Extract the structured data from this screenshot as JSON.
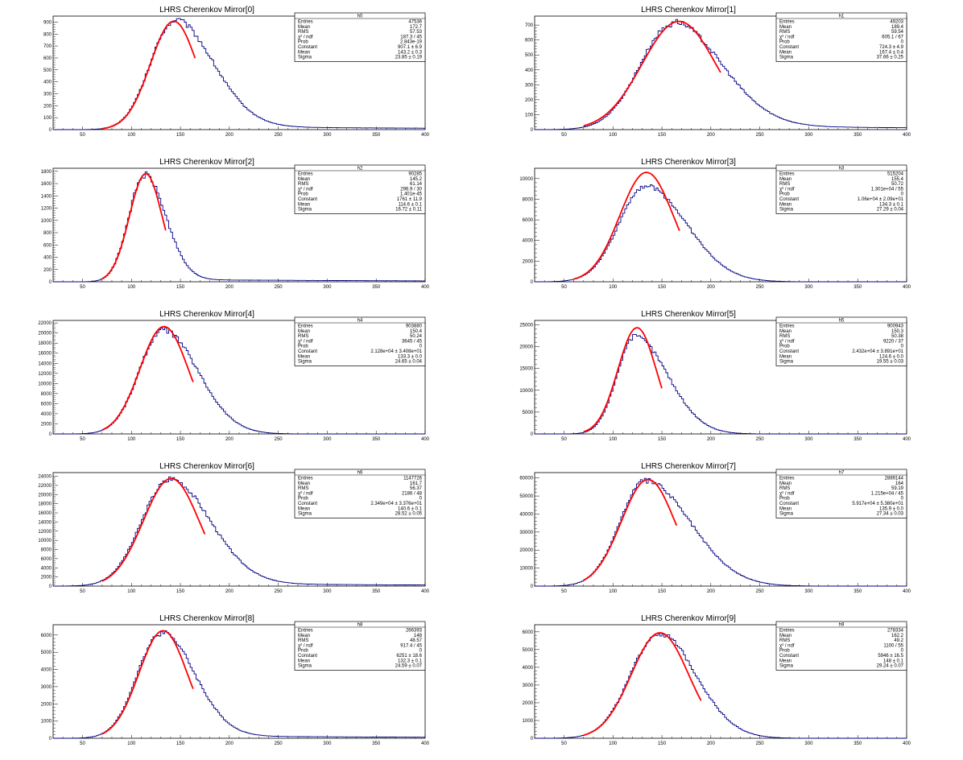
{
  "chart_data": [
    {
      "type": "histogram",
      "title": "LHRS Cherenkov Mirror[0]",
      "xlim": [
        20,
        400
      ],
      "ylim": [
        0,
        950
      ],
      "xticks": [
        50,
        100,
        150,
        200,
        250,
        300,
        350,
        400
      ],
      "yticks": [
        0,
        100,
        200,
        300,
        400,
        500,
        600,
        700,
        800,
        900
      ],
      "tail": 28,
      "stats": {
        "name": "h0",
        "rows": [
          [
            "Entries",
            "47536"
          ],
          [
            "Mean",
            "172.7"
          ],
          [
            "RMS",
            "57.53"
          ],
          [
            "χ² / ndf",
            "187.3 / 45"
          ],
          [
            "Prob",
            "2.843e-19"
          ],
          [
            "Constant",
            "907.1 ± 6.9"
          ],
          [
            "Mean",
            "143.2 ± 0.3"
          ],
          [
            "Sigma",
            "23.85 ± 0.19"
          ]
        ]
      },
      "hist": {
        "peak": 900,
        "mu": 143,
        "sl": 24,
        "sr": 40
      },
      "fit": {
        "const": 907.1,
        "mean": 143.2,
        "sigma": 23.85,
        "range": [
          70,
          165
        ]
      }
    },
    {
      "type": "histogram",
      "title": "LHRS Cherenkov Mirror[1]",
      "xlim": [
        20,
        400
      ],
      "ylim": [
        0,
        760
      ],
      "xticks": [
        50,
        100,
        150,
        200,
        250,
        300,
        350,
        400
      ],
      "yticks": [
        0,
        100,
        200,
        300,
        400,
        500,
        600,
        700
      ],
      "tail": 28,
      "stats": {
        "name": "h1",
        "rows": [
          [
            "Entries",
            "49203"
          ],
          [
            "Mean",
            "189.4"
          ],
          [
            "RMS",
            "59.54"
          ],
          [
            "χ² / ndf",
            "605.1 / 67"
          ],
          [
            "Prob",
            "0"
          ],
          [
            "Constant",
            "724.3 ± 4.9"
          ],
          [
            "Mean",
            "167.4 ± 0.4"
          ],
          [
            "Sigma",
            "37.66 ± 0.25"
          ]
        ]
      },
      "hist": {
        "peak": 700,
        "mu": 160,
        "sl": 33,
        "sr": 50
      },
      "fit": {
        "const": 724.3,
        "mean": 167.4,
        "sigma": 37.66,
        "range": [
          70,
          210
        ]
      }
    },
    {
      "type": "histogram",
      "title": "LHRS Cherenkov Mirror[2]",
      "xlim": [
        20,
        400
      ],
      "ylim": [
        0,
        1850
      ],
      "xticks": [
        50,
        100,
        150,
        200,
        250,
        300,
        350,
        400
      ],
      "yticks": [
        0,
        200,
        400,
        600,
        800,
        1000,
        1200,
        1400,
        1600,
        1800
      ],
      "tail": 38,
      "stats": {
        "name": "h2",
        "rows": [
          [
            "Entries",
            "90285"
          ],
          [
            "Mean",
            "145.2"
          ],
          [
            "RMS",
            "61.14"
          ],
          [
            "χ² / ndf",
            "296.9 / 30"
          ],
          [
            "Prob",
            "1.401e-45"
          ],
          [
            "Constant",
            "1761 ± 11.9"
          ],
          [
            "Mean",
            "114.6 ± 0.1"
          ],
          [
            "Sigma",
            "16.72 ± 0.11"
          ]
        ]
      },
      "hist": {
        "peak": 1720,
        "mu": 113,
        "sl": 16,
        "sr": 22
      },
      "fit": {
        "const": 1761,
        "mean": 114.6,
        "sigma": 16.72,
        "range": [
          70,
          135
        ]
      }
    },
    {
      "type": "histogram",
      "title": "LHRS Cherenkov Mirror[3]",
      "xlim": [
        20,
        400
      ],
      "ylim": [
        0,
        11000
      ],
      "xticks": [
        50,
        100,
        150,
        200,
        250,
        300,
        350,
        400
      ],
      "yticks": [
        0,
        2000,
        4000,
        6000,
        8000,
        10000
      ],
      "tail": 0,
      "stats": {
        "name": "h3",
        "rows": [
          [
            "Entries",
            "515204"
          ],
          [
            "Mean",
            "155.4"
          ],
          [
            "RMS",
            "50.72"
          ],
          [
            "χ² / ndf",
            "1.301e+04 / 55"
          ],
          [
            "Prob",
            "0"
          ],
          [
            "Constant",
            "1.06e+04 ± 2.09e+01"
          ],
          [
            "Mean",
            "134.3 ± 0.1"
          ],
          [
            "Sigma",
            "27.29 ± 0.04"
          ]
        ]
      },
      "hist": {
        "peak": 9300,
        "mu": 133,
        "sl": 27,
        "sr": 42
      },
      "fit": {
        "const": 10600,
        "mean": 134.3,
        "sigma": 27.29,
        "range": [
          60,
          168
        ]
      }
    },
    {
      "type": "histogram",
      "title": "LHRS Cherenkov Mirror[4]",
      "xlim": [
        20,
        400
      ],
      "ylim": [
        0,
        22500
      ],
      "xticks": [
        50,
        100,
        150,
        200,
        250,
        300,
        350,
        400
      ],
      "yticks": [
        0,
        2000,
        4000,
        6000,
        8000,
        10000,
        12000,
        14000,
        16000,
        18000,
        20000,
        22000
      ],
      "tail": 0,
      "stats": {
        "name": "h4",
        "rows": [
          [
            "Entries",
            "903880"
          ],
          [
            "Mean",
            "150.4"
          ],
          [
            "RMS",
            "50.24"
          ],
          [
            "χ² / ndf",
            "3645 / 45"
          ],
          [
            "Prob",
            "0"
          ],
          [
            "Constant",
            "2.128e+04 ± 3.408e+01"
          ],
          [
            "Mean",
            "133.3 ± 0.0"
          ],
          [
            "Sigma",
            "24.65 ± 0.04"
          ]
        ]
      },
      "hist": {
        "peak": 20600,
        "mu": 132,
        "sl": 24,
        "sr": 36
      },
      "fit": {
        "const": 21280,
        "mean": 133.3,
        "sigma": 24.65,
        "range": [
          70,
          163
        ]
      }
    },
    {
      "type": "histogram",
      "title": "LHRS Cherenkov Mirror[5]",
      "xlim": [
        20,
        400
      ],
      "ylim": [
        0,
        26000
      ],
      "xticks": [
        50,
        100,
        150,
        200,
        250,
        300,
        350,
        400
      ],
      "yticks": [
        0,
        5000,
        10000,
        15000,
        20000,
        25000
      ],
      "tail": 0,
      "stats": {
        "name": "h5",
        "rows": [
          [
            "Entries",
            "900943"
          ],
          [
            "Mean",
            "150.3"
          ],
          [
            "RMS",
            "50.38"
          ],
          [
            "χ² / ndf",
            "9220 / 37"
          ],
          [
            "Prob",
            "0"
          ],
          [
            "Constant",
            "2.432e+04 ± 3.891e+01"
          ],
          [
            "Mean",
            "124.6 ± 0.0"
          ],
          [
            "Sigma",
            "19.55 ± 0.03"
          ]
        ]
      },
      "hist": {
        "peak": 22300,
        "mu": 122,
        "sl": 18,
        "sr": 34
      },
      "fit": {
        "const": 24320,
        "mean": 124.6,
        "sigma": 19.55,
        "range": [
          70,
          150
        ]
      }
    },
    {
      "type": "histogram",
      "title": "LHRS Cherenkov Mirror[6]",
      "xlim": [
        20,
        400
      ],
      "ylim": [
        0,
        24800
      ],
      "xticks": [
        50,
        100,
        150,
        200,
        250,
        300,
        350,
        400
      ],
      "yticks": [
        0,
        2000,
        4000,
        6000,
        8000,
        10000,
        12000,
        14000,
        16000,
        18000,
        20000,
        22000,
        24000
      ],
      "tail": 600,
      "stats": {
        "name": "h6",
        "rows": [
          [
            "Entries",
            "1147726"
          ],
          [
            "Mean",
            "161.7"
          ],
          [
            "RMS",
            "56.37"
          ],
          [
            "χ² / ndf",
            "2186 / 48"
          ],
          [
            "Prob",
            "0"
          ],
          [
            "Constant",
            "2.349e+04 ± 3.376e+01"
          ],
          [
            "Mean",
            "140.6 ± 0.1"
          ],
          [
            "Sigma",
            "28.52 ± 0.05"
          ]
        ]
      },
      "hist": {
        "peak": 23000,
        "mu": 138,
        "sl": 28,
        "sr": 42
      },
      "fit": {
        "const": 23490,
        "mean": 140.6,
        "sigma": 28.52,
        "range": [
          70,
          175
        ]
      }
    },
    {
      "type": "histogram",
      "title": "LHRS Cherenkov Mirror[7]",
      "xlim": [
        20,
        400
      ],
      "ylim": [
        0,
        63000
      ],
      "xticks": [
        50,
        100,
        150,
        200,
        250,
        300,
        350,
        400
      ],
      "yticks": [
        0,
        10000,
        20000,
        30000,
        40000,
        50000,
        60000
      ],
      "tail": 0,
      "stats": {
        "name": "h7",
        "rows": [
          [
            "Entries",
            "2889144"
          ],
          [
            "Mean",
            "164"
          ],
          [
            "RMS",
            "59.19"
          ],
          [
            "χ² / ndf",
            "1.215e+04 / 45"
          ],
          [
            "Prob",
            "0"
          ],
          [
            "Constant",
            "5.917e+04 ± 5.380e+01"
          ],
          [
            "Mean",
            "135.9 ± 0.0"
          ],
          [
            "Sigma",
            "27.34 ± 0.03"
          ]
        ]
      },
      "hist": {
        "peak": 58500,
        "mu": 133,
        "sl": 26,
        "sr": 46
      },
      "fit": {
        "const": 59170,
        "mean": 135.9,
        "sigma": 27.34,
        "range": [
          70,
          165
        ]
      }
    },
    {
      "type": "histogram",
      "title": "LHRS Cherenkov Mirror[8]",
      "xlim": [
        20,
        400
      ],
      "ylim": [
        0,
        6600
      ],
      "xticks": [
        50,
        100,
        150,
        200,
        250,
        300,
        350,
        400
      ],
      "yticks": [
        0,
        1000,
        2000,
        3000,
        4000,
        5000,
        6000
      ],
      "tail": 150,
      "stats": {
        "name": "h8",
        "rows": [
          [
            "Entries",
            "266393"
          ],
          [
            "Mean",
            "148"
          ],
          [
            "RMS",
            "48.57"
          ],
          [
            "χ² / ndf",
            "917.4 / 45"
          ],
          [
            "Prob",
            "0"
          ],
          [
            "Constant",
            "6251 ± 18.6"
          ],
          [
            "Mean",
            "132.3 ± 0.1"
          ],
          [
            "Sigma",
            "24.59 ± 0.07"
          ]
        ]
      },
      "hist": {
        "peak": 6100,
        "mu": 130,
        "sl": 24,
        "sr": 34
      },
      "fit": {
        "const": 6251,
        "mean": 132.3,
        "sigma": 24.59,
        "range": [
          70,
          163
        ]
      }
    },
    {
      "type": "histogram",
      "title": "LHRS Cherenkov Mirror[9]",
      "xlim": [
        20,
        400
      ],
      "ylim": [
        0,
        6400
      ],
      "xticks": [
        50,
        100,
        150,
        200,
        250,
        300,
        350,
        400
      ],
      "yticks": [
        0,
        1000,
        2000,
        3000,
        4000,
        5000,
        6000
      ],
      "tail": 0,
      "stats": {
        "name": "h9",
        "rows": [
          [
            "Entries",
            "278334"
          ],
          [
            "Mean",
            "162.2"
          ],
          [
            "RMS",
            "49.2"
          ],
          [
            "χ² / ndf",
            "1100 / 55"
          ],
          [
            "Prob",
            "0"
          ],
          [
            "Constant",
            "5946 ± 16.5"
          ],
          [
            "Mean",
            "148 ± 0.1"
          ],
          [
            "Sigma",
            "29.24 ± 0.07"
          ]
        ]
      },
      "hist": {
        "peak": 5900,
        "mu": 147,
        "sl": 29,
        "sr": 38
      },
      "fit": {
        "const": 5946,
        "mean": 148,
        "sigma": 29.24,
        "range": [
          70,
          190
        ]
      }
    }
  ],
  "colors": {
    "histogram": "#000080",
    "fit": "#ff0000",
    "frame": "#000000"
  }
}
